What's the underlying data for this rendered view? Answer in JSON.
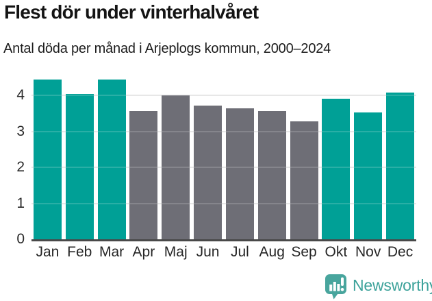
{
  "header": {
    "title": "Flest dör under vinterhalvåret",
    "subtitle": "Antal döda per månad i Arjeplogs kommun, 2000–2024"
  },
  "chart_data": {
    "type": "bar",
    "title": "Flest dör under vinterhalvåret",
    "subtitle": "Antal döda per månad i Arjeplogs kommun, 2000–2024",
    "categories": [
      "Jan",
      "Feb",
      "Mar",
      "Apr",
      "Maj",
      "Jun",
      "Jul",
      "Aug",
      "Sep",
      "Okt",
      "Nov",
      "Dec"
    ],
    "values": [
      4.44,
      4.04,
      4.44,
      3.56,
      4.0,
      3.72,
      3.64,
      3.56,
      3.28,
      3.92,
      3.52,
      4.08
    ],
    "highlighted_categories": [
      "Jan",
      "Feb",
      "Mar",
      "Okt",
      "Nov",
      "Dec"
    ],
    "highlight_color": "#00a096",
    "default_color": "#6e6e76",
    "xlabel": "",
    "ylabel": "",
    "yticks": [
      0,
      1,
      2,
      3,
      4
    ],
    "ylim": [
      0,
      4.52
    ],
    "grid": true,
    "legend_position": "none"
  },
  "footer": {
    "brand": "Newsworthy",
    "logo_icon": "newsworthy-speech-bubble-bar-chart-icon",
    "brand_color": "#3ca29a",
    "icon_color": "#48a59d"
  },
  "colors": {
    "background": "#ffffff",
    "axis_line": "#494949",
    "gridline": "#e3e3e3",
    "tick_label": "#2b2b2b",
    "title": "#141414"
  }
}
